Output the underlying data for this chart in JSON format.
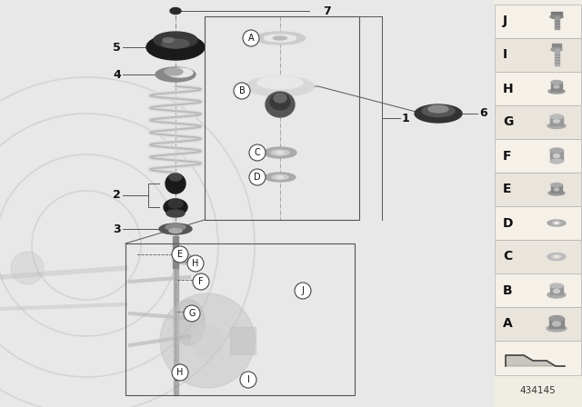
{
  "figure_number": "434145",
  "bg_main": "#e8e8e8",
  "bg_right_panel": "#f0ede5",
  "accent_peach": "#f0c896",
  "legend_labels": [
    "J",
    "I",
    "H",
    "G",
    "F",
    "E",
    "D",
    "C",
    "B",
    "A"
  ],
  "legend_bg_even": "#f5f0e8",
  "legend_bg_odd": "#eae5dc",
  "legend_border": "#bbbbbb",
  "line_color": "#555555",
  "label_color": "#222222",
  "watermark_color": "#cccccc",
  "part_numbers": [
    "7",
    "5",
    "4",
    "2",
    "3",
    "6",
    "1"
  ],
  "callout_circles_upper": [
    "A",
    "B",
    "C",
    "D"
  ],
  "callout_circles_lower": [
    "E",
    "H",
    "F",
    "G",
    "H",
    "I",
    "J"
  ]
}
